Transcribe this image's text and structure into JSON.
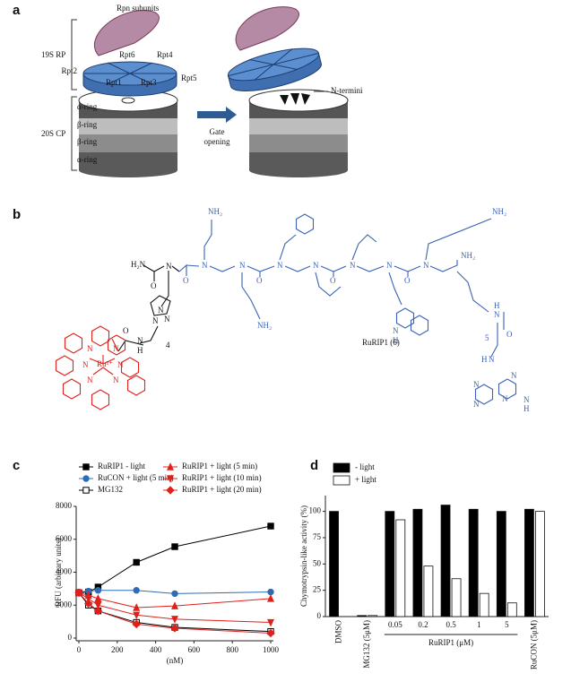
{
  "panel_labels": [
    "a",
    "b",
    "c",
    "d"
  ],
  "panel_a": {
    "rpn": "Rpn subunits",
    "rp": "19S RP",
    "cp": "20S CP",
    "rpt": [
      "Rpt2",
      "Rpt6",
      "Rpt4",
      "Rpt1",
      "Rpt3",
      "Rpt5"
    ],
    "rings": [
      "α-ring",
      "β-ring",
      "β-ring",
      "α-ring"
    ],
    "gate": [
      "Gate",
      "opening"
    ],
    "termini": "N-termini"
  },
  "panel_b": {
    "compound": "RuRIP1 (6)",
    "atoms": [
      "H₂N",
      "O",
      "N",
      "N",
      "N",
      "N",
      "N",
      "H",
      "4",
      "O",
      "NH₂",
      "N",
      "N",
      "N",
      "N",
      "N",
      "N",
      "N",
      "O",
      "O",
      "O",
      "O",
      "NH₂",
      "NH₂",
      "NH₂",
      "N",
      "H",
      "N",
      "H",
      "O",
      "5",
      "N",
      "H",
      "N",
      "N",
      "N",
      "N",
      "N",
      "H",
      "Ru²⁺",
      "N",
      "N",
      "N",
      "N",
      "N",
      "N"
    ]
  },
  "chart_data": [
    {
      "type": "line",
      "xlabel": "(nM)",
      "ylabel": "RFU (arbitrary units)",
      "x": [
        0,
        50,
        100,
        300,
        500,
        1000
      ],
      "xlim": [
        0,
        1000
      ],
      "xticks": [
        0,
        200,
        400,
        600,
        800,
        1000
      ],
      "ylim": [
        0,
        8000
      ],
      "yticks": [
        0,
        2000,
        4000,
        6000,
        8000
      ],
      "series": [
        {
          "name": "RuRIP1 - light",
          "color": "#000000",
          "marker": "square",
          "values": [
            2750,
            2800,
            3100,
            4600,
            5550,
            6800
          ]
        },
        {
          "name": "RuCON + light (5 min)",
          "color": "#2e6db4",
          "marker": "circle",
          "values": [
            2800,
            2850,
            2900,
            2900,
            2700,
            2800
          ]
        },
        {
          "name": "MG132",
          "color": "#000000",
          "marker": "open-square",
          "values": [
            2750,
            2000,
            1650,
            950,
            650,
            400
          ]
        },
        {
          "name": "RuRIP1 + light (5 min)",
          "color": "#e0201b",
          "marker": "triangle-up",
          "values": [
            2750,
            2600,
            2400,
            1850,
            1950,
            2400
          ]
        },
        {
          "name": "RuRIP1 + light (10 min)",
          "color": "#e0201b",
          "marker": "triangle-down",
          "values": [
            2750,
            2400,
            2000,
            1400,
            1150,
            950
          ]
        },
        {
          "name": "RuRIP1 + light (20 min)",
          "color": "#e0201b",
          "marker": "diamond",
          "values": [
            2750,
            2100,
            1650,
            850,
            600,
            300
          ]
        }
      ]
    },
    {
      "type": "bar",
      "ylabel": "Chymotrypsin-like activity (%)",
      "group_label": "RuRIP1 (μM)",
      "categories": [
        "DMSO",
        "MG132 (5μM)",
        "0.05",
        "0.2",
        "0.5",
        "1",
        "5",
        "RuCON (5μM)"
      ],
      "ylim": [
        0,
        115
      ],
      "yticks": [
        0,
        25,
        50,
        75,
        100
      ],
      "series": [
        {
          "name": "- light",
          "color": "#000000",
          "values": [
            100,
            1,
            100,
            102,
            106,
            102,
            100,
            102
          ]
        },
        {
          "name": "+ light",
          "color": "#ffffff",
          "values": [
            null,
            1,
            92,
            48,
            36,
            22,
            13,
            100
          ]
        }
      ]
    }
  ]
}
